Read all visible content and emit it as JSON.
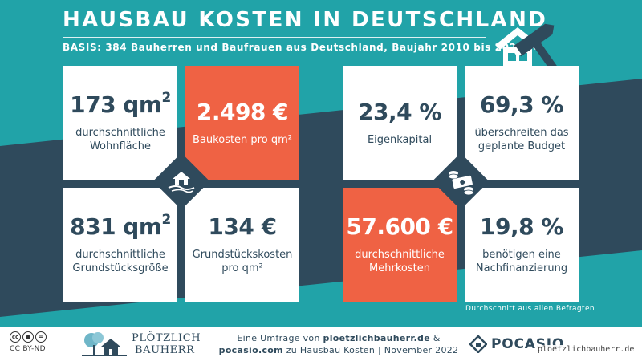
{
  "header": {
    "title": "HAUSBAU KOSTEN IN DEUTSCHLAND",
    "subtitle": "BASIS: 384 Bauherren und Baufrauen aus Deutschland, Baujahr 2010 bis 2022",
    "icon": "house-hammer-icon"
  },
  "colors": {
    "teal": "#21a3a8",
    "navy": "#2f4a5c",
    "orange": "#ef6244",
    "white": "#ffffff"
  },
  "cards_left": [
    {
      "value": "173 qm",
      "sup": "2",
      "label": [
        "durchschnittliche",
        "Wohnfläche"
      ]
    },
    {
      "value": "2.498 €",
      "sup": "",
      "label": [
        "Baukosten pro qm²"
      ]
    },
    {
      "value": "831 qm",
      "sup": "2",
      "label": [
        "durchschnittliche",
        "Grundstücksgröße"
      ]
    },
    {
      "value": "134 €",
      "sup": "",
      "label": [
        "Grundstückskosten",
        "pro qm²"
      ]
    }
  ],
  "cards_right": [
    {
      "value": "23,4 %",
      "label": [
        "Eigenkapital"
      ]
    },
    {
      "value": "69,3 %",
      "label": [
        "überschreiten das",
        "geplante Budget"
      ]
    },
    {
      "value": "57.600 €",
      "label": [
        "durchschnittliche",
        "Mehrkosten"
      ]
    },
    {
      "value": "19,8 %",
      "label": [
        "benötigen eine",
        "Nachfinanzierung"
      ]
    }
  ],
  "center_icons": {
    "left": "house-landscape-icon",
    "right": "money-icon"
  },
  "footnote": "Durchschnitt aus allen Befragten",
  "footer": {
    "license": "CC BY-ND",
    "brand_line1": "PLÖTZLICH",
    "brand_line2": "BAUHERR",
    "credit_line1_prefix": "Eine Umfrage von ",
    "credit_line1_site": "ploetzlichbauherr.de",
    "credit_line1_suffix": " &",
    "credit_line2_site": "pocasio.com",
    "credit_line2_suffix": " zu Hausbau Kosten | November 2022",
    "partner": "POCASIO"
  },
  "watermark": "ploetzlichbauherr.de"
}
